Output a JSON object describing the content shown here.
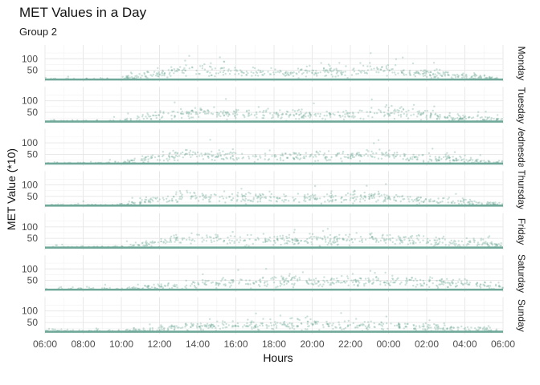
{
  "chart_data": {
    "type": "scatter",
    "title": "MET Values in a Day",
    "subtitle": "Group 2",
    "xlabel": "Hours",
    "ylabel": "MET Value (*10)",
    "x_ticks": [
      "06:00",
      "08:00",
      "10:00",
      "12:00",
      "14:00",
      "16:00",
      "18:00",
      "20:00",
      "22:00",
      "00:00",
      "02:00",
      "04:00",
      "06:00"
    ],
    "y_ticks": [
      50,
      100
    ],
    "ylim": [
      0,
      160
    ],
    "grid": true,
    "color": "#6fa899",
    "facet_labels": [
      "Monday",
      "Tuesday",
      "Wednesday",
      "Thursday",
      "Friday",
      "Saturday",
      "Sunday"
    ],
    "baseline_value": 10,
    "facets": [
      {
        "name": "Monday",
        "profile": [
          [
            0,
            12
          ],
          [
            1,
            12
          ],
          [
            2,
            12
          ],
          [
            3,
            12
          ],
          [
            4,
            15
          ],
          [
            5,
            25
          ],
          [
            6,
            35
          ],
          [
            7,
            45
          ],
          [
            8,
            48
          ],
          [
            9,
            45
          ],
          [
            10,
            40
          ],
          [
            11,
            42
          ],
          [
            12,
            40
          ],
          [
            13,
            38
          ],
          [
            14,
            42
          ],
          [
            15,
            40
          ],
          [
            16,
            45
          ],
          [
            17,
            55
          ],
          [
            18,
            50
          ],
          [
            19,
            42
          ],
          [
            20,
            35
          ],
          [
            21,
            30
          ],
          [
            22,
            25
          ],
          [
            23,
            18
          ],
          [
            24,
            15
          ]
        ]
      },
      {
        "name": "Tuesday",
        "profile": [
          [
            0,
            12
          ],
          [
            1,
            12
          ],
          [
            2,
            12
          ],
          [
            3,
            12
          ],
          [
            4,
            15
          ],
          [
            5,
            25
          ],
          [
            6,
            38
          ],
          [
            7,
            45
          ],
          [
            8,
            48
          ],
          [
            9,
            45
          ],
          [
            10,
            40
          ],
          [
            11,
            45
          ],
          [
            12,
            40
          ],
          [
            13,
            38
          ],
          [
            14,
            40
          ],
          [
            15,
            40
          ],
          [
            16,
            45
          ],
          [
            17,
            52
          ],
          [
            18,
            50
          ],
          [
            19,
            45
          ],
          [
            20,
            38
          ],
          [
            21,
            30
          ],
          [
            22,
            25
          ],
          [
            23,
            22
          ],
          [
            24,
            18
          ]
        ]
      },
      {
        "name": "Wednesday",
        "profile": [
          [
            0,
            12
          ],
          [
            1,
            12
          ],
          [
            2,
            12
          ],
          [
            3,
            12
          ],
          [
            4,
            15
          ],
          [
            5,
            25
          ],
          [
            6,
            38
          ],
          [
            7,
            45
          ],
          [
            8,
            50
          ],
          [
            9,
            45
          ],
          [
            10,
            40
          ],
          [
            11,
            42
          ],
          [
            12,
            40
          ],
          [
            13,
            38
          ],
          [
            14,
            40
          ],
          [
            15,
            40
          ],
          [
            16,
            45
          ],
          [
            17,
            52
          ],
          [
            18,
            48
          ],
          [
            19,
            42
          ],
          [
            20,
            35
          ],
          [
            21,
            30
          ],
          [
            22,
            25
          ],
          [
            23,
            20
          ],
          [
            24,
            15
          ]
        ]
      },
      {
        "name": "Thursday",
        "profile": [
          [
            0,
            12
          ],
          [
            1,
            12
          ],
          [
            2,
            12
          ],
          [
            3,
            12
          ],
          [
            4,
            15
          ],
          [
            5,
            25
          ],
          [
            6,
            38
          ],
          [
            7,
            45
          ],
          [
            8,
            48
          ],
          [
            9,
            45
          ],
          [
            10,
            42
          ],
          [
            11,
            45
          ],
          [
            12,
            42
          ],
          [
            13,
            40
          ],
          [
            14,
            42
          ],
          [
            15,
            42
          ],
          [
            16,
            45
          ],
          [
            17,
            50
          ],
          [
            18,
            48
          ],
          [
            19,
            42
          ],
          [
            20,
            35
          ],
          [
            21,
            30
          ],
          [
            22,
            25
          ],
          [
            23,
            20
          ],
          [
            24,
            15
          ]
        ]
      },
      {
        "name": "Friday",
        "profile": [
          [
            0,
            12
          ],
          [
            1,
            12
          ],
          [
            2,
            12
          ],
          [
            3,
            12
          ],
          [
            4,
            15
          ],
          [
            5,
            25
          ],
          [
            6,
            38
          ],
          [
            7,
            45
          ],
          [
            8,
            50
          ],
          [
            9,
            45
          ],
          [
            10,
            40
          ],
          [
            11,
            45
          ],
          [
            12,
            42
          ],
          [
            13,
            40
          ],
          [
            14,
            42
          ],
          [
            15,
            42
          ],
          [
            16,
            45
          ],
          [
            17,
            50
          ],
          [
            18,
            48
          ],
          [
            19,
            45
          ],
          [
            20,
            40
          ],
          [
            21,
            35
          ],
          [
            22,
            30
          ],
          [
            23,
            25
          ],
          [
            24,
            20
          ]
        ]
      },
      {
        "name": "Saturday",
        "profile": [
          [
            0,
            15
          ],
          [
            1,
            15
          ],
          [
            2,
            15
          ],
          [
            3,
            15
          ],
          [
            4,
            15
          ],
          [
            5,
            18
          ],
          [
            6,
            25
          ],
          [
            7,
            30
          ],
          [
            8,
            35
          ],
          [
            9,
            40
          ],
          [
            10,
            45
          ],
          [
            11,
            45
          ],
          [
            12,
            45
          ],
          [
            13,
            45
          ],
          [
            14,
            45
          ],
          [
            15,
            45
          ],
          [
            16,
            45
          ],
          [
            17,
            45
          ],
          [
            18,
            45
          ],
          [
            19,
            42
          ],
          [
            20,
            40
          ],
          [
            21,
            38
          ],
          [
            22,
            35
          ],
          [
            23,
            30
          ],
          [
            24,
            25
          ]
        ]
      },
      {
        "name": "Sunday",
        "profile": [
          [
            0,
            15
          ],
          [
            1,
            15
          ],
          [
            2,
            15
          ],
          [
            3,
            15
          ],
          [
            4,
            15
          ],
          [
            5,
            18
          ],
          [
            6,
            22
          ],
          [
            7,
            28
          ],
          [
            8,
            32
          ],
          [
            9,
            35
          ],
          [
            10,
            38
          ],
          [
            11,
            40
          ],
          [
            12,
            40
          ],
          [
            13,
            42
          ],
          [
            14,
            42
          ],
          [
            15,
            40
          ],
          [
            16,
            38
          ],
          [
            17,
            38
          ],
          [
            18,
            38
          ],
          [
            19,
            35
          ],
          [
            20,
            32
          ],
          [
            21,
            28
          ],
          [
            22,
            25
          ],
          [
            23,
            20
          ],
          [
            24,
            15
          ]
        ]
      }
    ]
  }
}
